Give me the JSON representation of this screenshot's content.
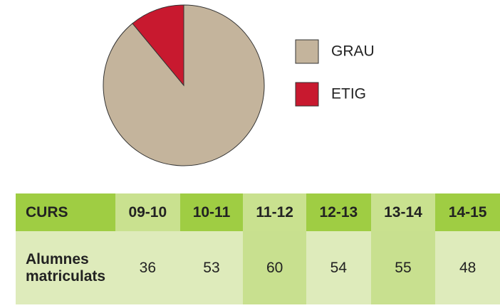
{
  "chart_data": {
    "type": "pie",
    "categories": [
      "GRAU",
      "ETIG"
    ],
    "values": [
      89,
      11
    ],
    "colors": [
      "#c4b49c",
      "#c8192f"
    ]
  },
  "table": {
    "header": [
      "CURS",
      "09-10",
      "10-11",
      "11-12",
      "12-13",
      "13-14",
      "14-15"
    ],
    "rows": [
      [
        "Alumnes matriculats",
        36,
        53,
        60,
        54,
        55,
        48
      ]
    ]
  }
}
